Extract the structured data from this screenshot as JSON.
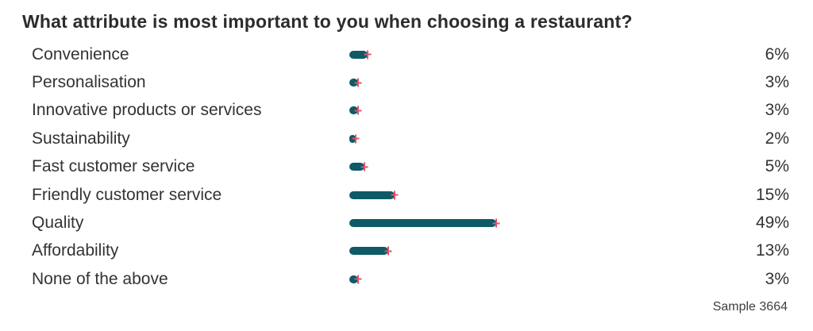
{
  "chart_data": {
    "type": "bar",
    "orientation": "horizontal",
    "title": "What attribute is most important to you when choosing a restaurant?",
    "categories": [
      "Convenience",
      "Personalisation",
      "Innovative products or services",
      "Sustainability",
      "Fast customer service",
      "Friendly customer service",
      "Quality",
      "Affordability",
      "None of the above"
    ],
    "values": [
      6,
      3,
      3,
      2,
      5,
      15,
      49,
      13,
      3
    ],
    "value_labels": [
      "6%",
      "3%",
      "3%",
      "2%",
      "5%",
      "15%",
      "49%",
      "13%",
      "3%"
    ],
    "xlim": [
      0,
      50
    ],
    "grid": false,
    "legend": "none",
    "footnote": "Sample 3664",
    "colors": {
      "bar": "#0e5a66",
      "error_tick": "#e0556b",
      "text": "#333333"
    }
  }
}
